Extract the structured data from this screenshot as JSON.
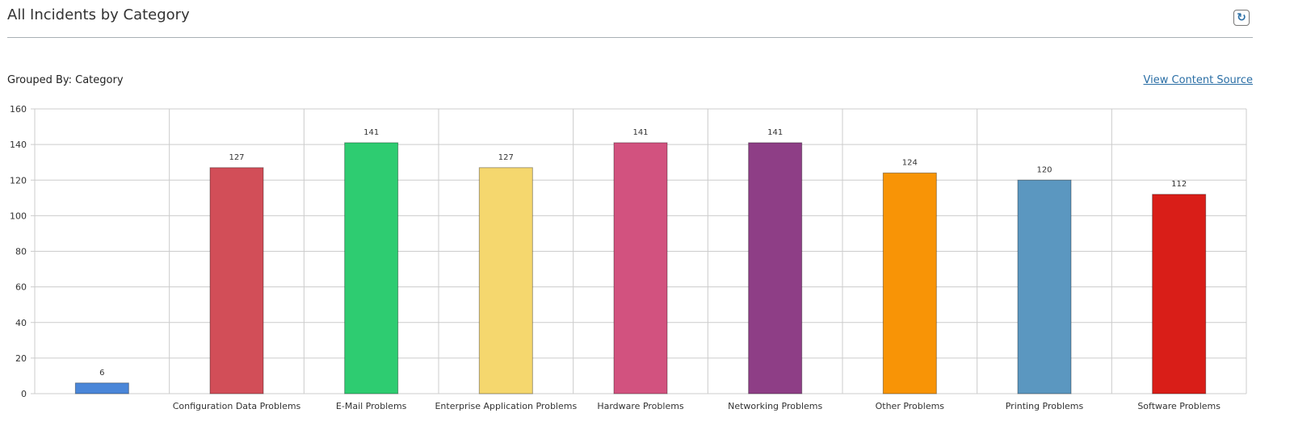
{
  "header": {
    "title": "All Incidents by Category",
    "refresh_icon": "refresh-icon"
  },
  "grouped_by": "Grouped By: Category",
  "view_content_source": "View Content Source",
  "chart_data": {
    "type": "bar",
    "title": "All Incidents by Category",
    "xlabel": "",
    "ylabel": "",
    "ylim": [
      0,
      160
    ],
    "yticks": [
      0,
      20,
      40,
      60,
      80,
      100,
      120,
      140,
      160
    ],
    "categories": [
      "",
      "Configuration Data Problems",
      "E-Mail Problems",
      "Enterprise Application Problems",
      "Hardware Problems",
      "Networking Problems",
      "Other Problems",
      "Printing Problems",
      "Software Problems"
    ],
    "values": [
      6,
      127,
      141,
      127,
      141,
      141,
      124,
      120,
      112
    ],
    "colors": [
      "#4a86d8",
      "#d24e58",
      "#2ecc71",
      "#f5d76e",
      "#d2527f",
      "#8e3e86",
      "#f89406",
      "#5b97c0",
      "#d91e18"
    ],
    "grid": true
  }
}
